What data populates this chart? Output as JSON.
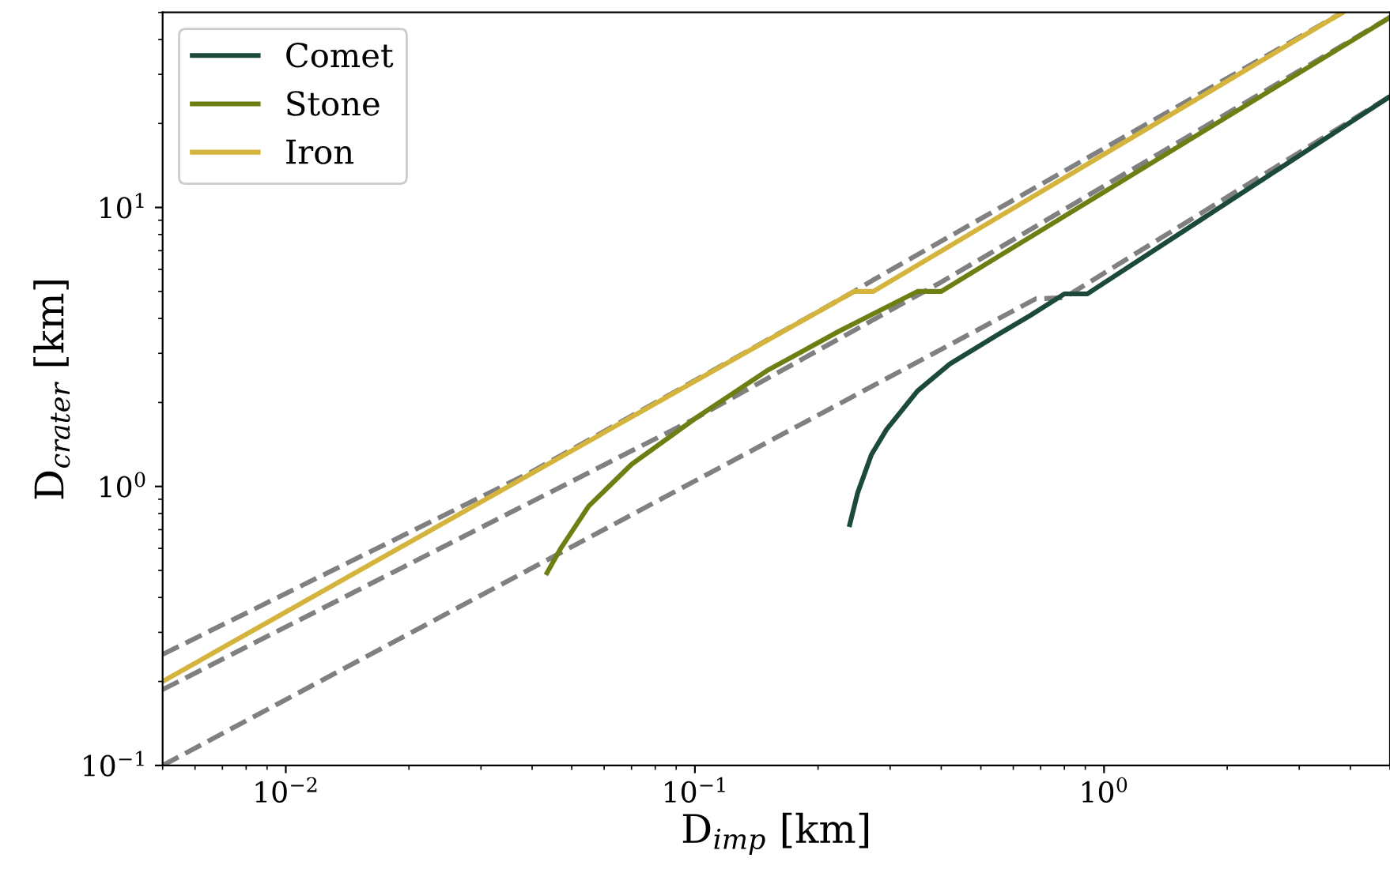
{
  "chart_data": {
    "type": "line",
    "xlabel": "D$_{imp}$ [km]",
    "ylabel": "D$_{crater}$ [km]",
    "log": "xy",
    "xlim": [
      0.005,
      5
    ],
    "ylim": [
      0.1,
      50
    ],
    "xticks": [
      {
        "value": 0.01,
        "label": "10$^{−2}$"
      },
      {
        "value": 0.1,
        "label": "10$^{−1}$"
      },
      {
        "value": 1,
        "label": "10$^{0}$"
      }
    ],
    "yticks": [
      {
        "value": 0.1,
        "label": "10$^{−1}$"
      },
      {
        "value": 1,
        "label": "10$^{0}$"
      },
      {
        "value": 10,
        "label": "10$^{1}$"
      }
    ],
    "grid": false,
    "legend": "top left",
    "series": [
      {
        "color": "#808080",
        "line_style": "dashed",
        "x": [
          0.005,
          0.04,
          0.245,
          0.273,
          3.83
        ],
        "values": [
          0.25,
          1.13,
          5.0,
          5.5,
          50
        ]
      },
      {
        "color": "#808080",
        "line_style": "dashed",
        "x": [
          0.005,
          0.1,
          0.4,
          5
        ],
        "values": [
          0.187,
          1.75,
          5.4,
          48
        ]
      },
      {
        "color": "#808080",
        "line_style": "dashed",
        "x": [
          0.005,
          0.68,
          0.8,
          5
        ],
        "values": [
          0.1,
          4.7,
          4.75,
          25
        ]
      },
      {
        "name": "Comet",
        "color": "#1c4a3a",
        "line_style": "solid",
        "x": [
          0.239,
          0.25,
          0.27,
          0.294,
          0.35,
          0.42,
          0.55,
          0.66,
          0.8,
          0.91,
          5
        ],
        "values": [
          0.73,
          0.95,
          1.3,
          1.6,
          2.2,
          2.75,
          3.5,
          4.1,
          4.9,
          4.9,
          25
        ]
      },
      {
        "name": "Stone",
        "color": "#6b7f12",
        "line_style": "solid",
        "x": [
          0.0435,
          0.047,
          0.055,
          0.07,
          0.1,
          0.15,
          0.225,
          0.35,
          0.4,
          5
        ],
        "values": [
          0.49,
          0.6,
          0.85,
          1.2,
          1.75,
          2.6,
          3.6,
          5.0,
          5.0,
          48
        ]
      },
      {
        "name": "Iron",
        "color": "#d4b43c",
        "line_style": "solid",
        "x": [
          0.005,
          0.245,
          0.273,
          3.83
        ],
        "values": [
          0.2,
          5.0,
          5.0,
          50
        ]
      }
    ]
  }
}
